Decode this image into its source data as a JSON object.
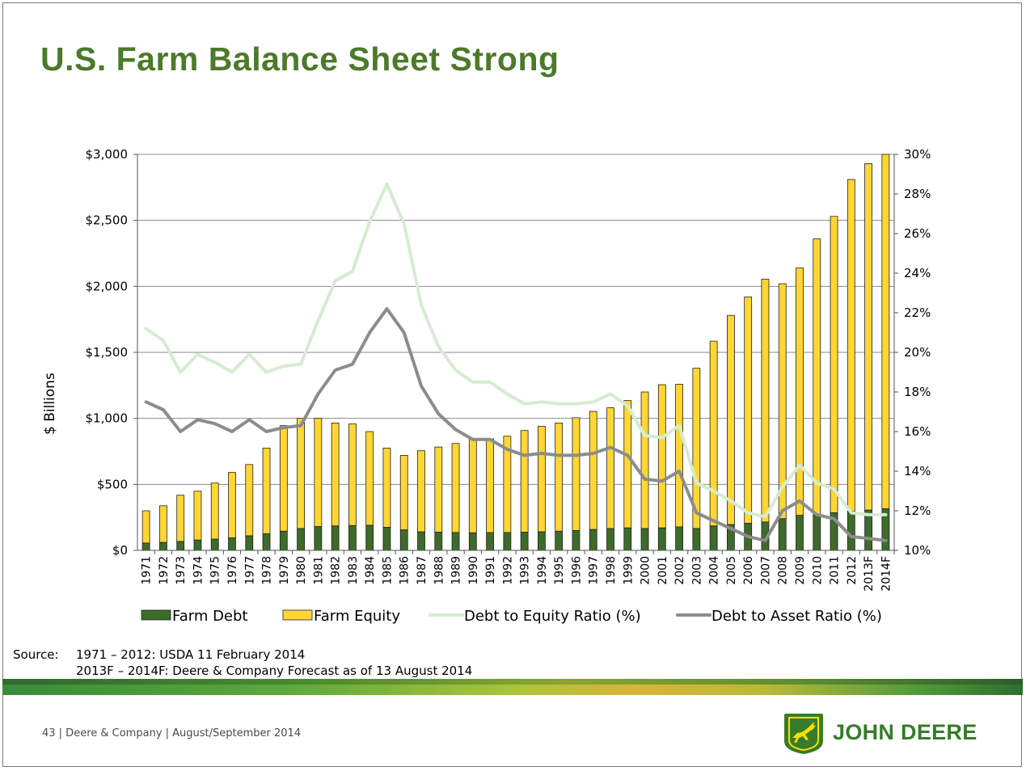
{
  "slide": {
    "title": "U.S. Farm Balance Sheet Strong",
    "source_label": "Source:",
    "source_line1": "1971 – 2012: USDA 11 February 2014",
    "source_line2": "2013F – 2014F: Deere & Company Forecast as of 13 August 2014",
    "footer": "43   |  Deere & Company    |   August/September 2014",
    "logo_text": "JOHN DEERE",
    "colors": {
      "title": "#4b7a2a",
      "farm_debt": "#3d6b2a",
      "farm_equity": "#ffd633",
      "debt_to_equity": "#d6ecd2",
      "debt_to_asset": "#8c8c8c",
      "brand": "#367c2b",
      "brand_yellow": "#ffde00"
    },
    "logo_icon": "leaping-deer-icon"
  },
  "chart_data": {
    "type": "bar",
    "stacked": true,
    "ylabel": "$ Billions",
    "ylim": [
      0,
      3000
    ],
    "yticks": [
      "$0",
      "$500",
      "$1,000",
      "$1,500",
      "$2,000",
      "$2,500",
      "$3,000"
    ],
    "y2lim": [
      10,
      30
    ],
    "y2ticks": [
      "10%",
      "12%",
      "14%",
      "16%",
      "18%",
      "20%",
      "22%",
      "24%",
      "26%",
      "28%",
      "30%"
    ],
    "grid": true,
    "legend_position": "bottom",
    "categories": [
      "1971",
      "1972",
      "1973",
      "1974",
      "1975",
      "1976",
      "1977",
      "1978",
      "1979",
      "1980",
      "1981",
      "1982",
      "1983",
      "1984",
      "1985",
      "1986",
      "1987",
      "1988",
      "1989",
      "1990",
      "1991",
      "1992",
      "1993",
      "1994",
      "1995",
      "1996",
      "1997",
      "1998",
      "1999",
      "2000",
      "2001",
      "2002",
      "2003",
      "2004",
      "2005",
      "2006",
      "2007",
      "2008",
      "2009",
      "2010",
      "2011",
      "2012",
      "2013F",
      "2014F"
    ],
    "series": [
      {
        "name": "Farm Debt",
        "kind": "bar",
        "axis": "left",
        "values": [
          55,
          60,
          68,
          78,
          85,
          95,
          110,
          125,
          145,
          165,
          180,
          185,
          188,
          190,
          175,
          155,
          140,
          138,
          135,
          133,
          135,
          135,
          138,
          140,
          145,
          150,
          158,
          165,
          170,
          165,
          170,
          178,
          165,
          185,
          195,
          205,
          215,
          240,
          265,
          265,
          285,
          295,
          305,
          315
        ]
      },
      {
        "name": "Farm Equity",
        "kind": "bar",
        "axis": "left",
        "values": [
          245,
          278,
          350,
          370,
          425,
          495,
          540,
          650,
          800,
          835,
          820,
          780,
          770,
          710,
          600,
          565,
          615,
          645,
          675,
          710,
          710,
          730,
          770,
          800,
          820,
          855,
          895,
          915,
          965,
          1035,
          1085,
          1080,
          1215,
          1400,
          1585,
          1715,
          1840,
          1780,
          1875,
          2095,
          2245,
          2515,
          2625,
          2685
        ]
      },
      {
        "name": "Debt to Equity Ratio (%)",
        "kind": "line",
        "axis": "right",
        "values": [
          21.2,
          20.6,
          19.0,
          19.9,
          19.5,
          19.0,
          19.9,
          19.0,
          19.3,
          19.4,
          21.6,
          23.6,
          24.1,
          26.6,
          28.5,
          26.5,
          22.4,
          20.3,
          19.1,
          18.5,
          18.5,
          17.9,
          17.4,
          17.5,
          17.4,
          17.4,
          17.5,
          17.9,
          17.3,
          15.8,
          15.7,
          16.3,
          13.4,
          13.0,
          12.5,
          11.9,
          11.7,
          13.2,
          14.3,
          13.4,
          13.1,
          11.9,
          11.8,
          11.8
        ]
      },
      {
        "name": "Debt to Asset Ratio (%)",
        "kind": "line",
        "axis": "right",
        "values": [
          17.5,
          17.1,
          16.0,
          16.6,
          16.4,
          16.0,
          16.6,
          16.0,
          16.2,
          16.3,
          17.9,
          19.1,
          19.4,
          21.0,
          22.2,
          21.0,
          18.3,
          16.9,
          16.1,
          15.6,
          15.6,
          15.1,
          14.8,
          14.9,
          14.8,
          14.8,
          14.9,
          15.2,
          14.8,
          13.6,
          13.5,
          14.0,
          11.9,
          11.5,
          11.1,
          10.7,
          10.5,
          12.0,
          12.5,
          11.8,
          11.6,
          10.7,
          10.6,
          10.5
        ]
      }
    ]
  }
}
